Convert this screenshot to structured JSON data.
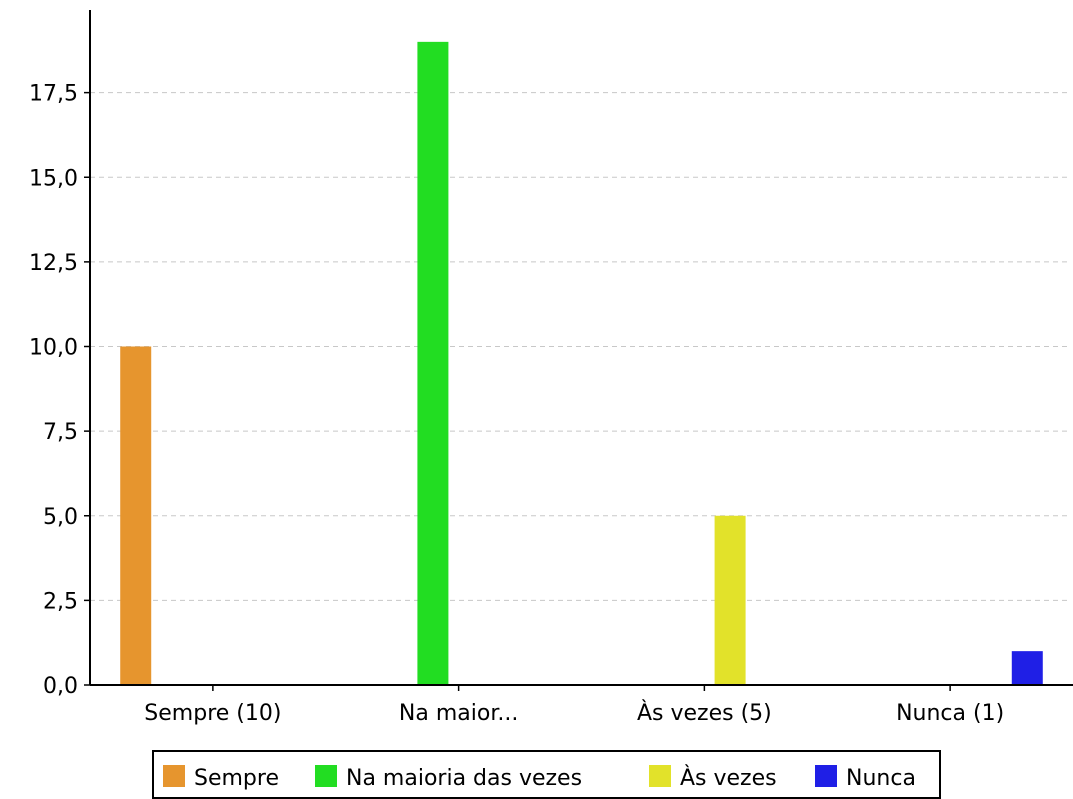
{
  "chart_data": {
    "type": "bar",
    "categories": [
      "Sempre (10)",
      "Na maior...",
      "Às vezes (5)",
      "Nunca (1)"
    ],
    "series": [
      {
        "name": "Sempre",
        "color": "#e6952e",
        "values": [
          10,
          0,
          0,
          0
        ]
      },
      {
        "name": "Na maioria das vezes",
        "color": "#22dd22",
        "values": [
          0,
          19,
          0,
          0
        ]
      },
      {
        "name": "Às vezes",
        "color": "#e2e22a",
        "values": [
          0,
          0,
          5,
          0
        ]
      },
      {
        "name": "Nunca",
        "color": "#1f1fe6",
        "values": [
          0,
          0,
          0,
          1
        ]
      }
    ],
    "title": "",
    "xlabel": "",
    "ylabel": "",
    "ylim": [
      0,
      19.5
    ],
    "yticks": [
      0,
      2.5,
      5,
      7.5,
      10,
      12.5,
      15,
      17.5
    ],
    "ytick_labels": [
      "0,0",
      "2,5",
      "5,0",
      "7,5",
      "10,0",
      "12,5",
      "15,0",
      "17,5"
    ],
    "grid": true,
    "legend_position": "bottom"
  }
}
